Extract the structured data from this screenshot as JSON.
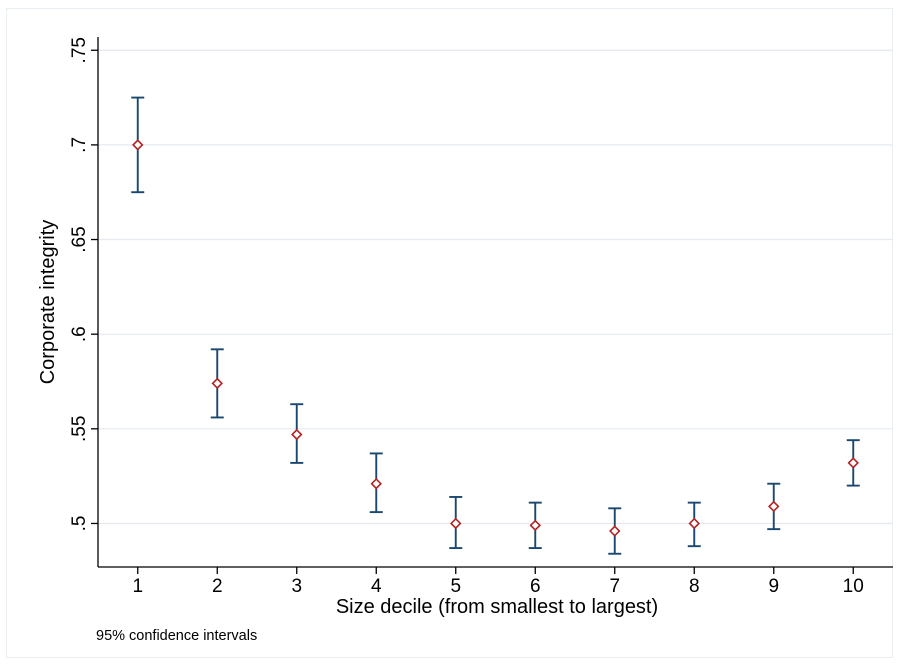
{
  "chart_data": {
    "type": "scatter",
    "subtype": "point-estimate with error bars",
    "title": "",
    "xlabel": "Size decile (from smallest to largest)",
    "ylabel": "Corporate integrity",
    "note": "95% confidence intervals",
    "x": [
      1,
      2,
      3,
      4,
      5,
      6,
      7,
      8,
      9,
      10
    ],
    "x_tick_labels": [
      "1",
      "2",
      "3",
      "4",
      "5",
      "6",
      "7",
      "8",
      "9",
      "10"
    ],
    "y_ticks": [
      0.5,
      0.55,
      0.6,
      0.65,
      0.7,
      0.75
    ],
    "y_tick_labels": [
      ".5",
      ".55",
      ".6",
      ".65",
      ".7",
      ".75"
    ],
    "ylim": [
      0.477,
      0.757
    ],
    "xlim": [
      0.5,
      10.5
    ],
    "grid": "horizontal",
    "series": [
      {
        "values": [
          0.7,
          0.574,
          0.547,
          0.521,
          0.5,
          0.499,
          0.496,
          0.5,
          0.509,
          0.532
        ],
        "ci_low": [
          0.675,
          0.556,
          0.532,
          0.506,
          0.487,
          0.487,
          0.484,
          0.488,
          0.497,
          0.52
        ],
        "ci_high": [
          0.725,
          0.592,
          0.563,
          0.537,
          0.514,
          0.511,
          0.508,
          0.511,
          0.521,
          0.544
        ]
      }
    ],
    "colors": {
      "marker": "#b22222",
      "error_bar": "#1a476f",
      "grid": "#e4eaf0",
      "axis": "#000000"
    }
  }
}
